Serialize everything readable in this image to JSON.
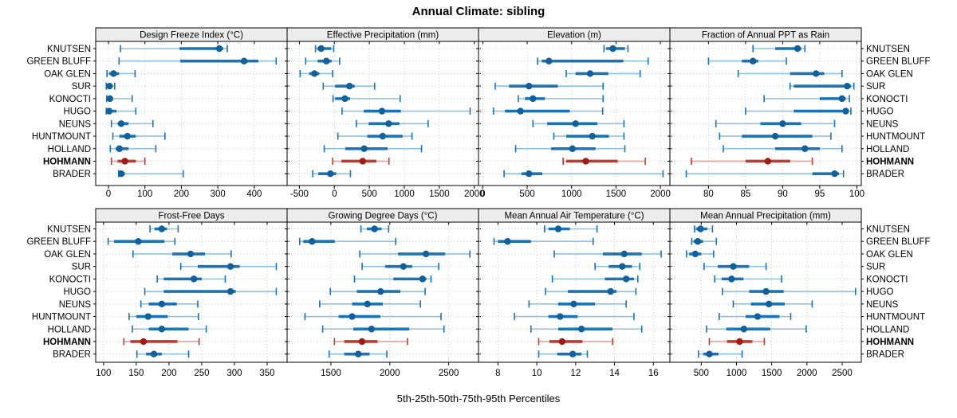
{
  "title": "Annual Climate: sibling",
  "footer": "5th-25th-50th-75th-95th Percentiles",
  "sites": [
    "KNUTSEN",
    "GREEN BLUFF",
    "OAK GLEN",
    "SUR",
    "KONOCTI",
    "HUGO",
    "NEUNS",
    "HUNTMOUNT",
    "HOLLAND",
    "HOHMANN",
    "BRADER"
  ],
  "highlight_site": "HOHMANN",
  "colors": {
    "blue_whisker": "#8fc1e3",
    "blue_band": "#1b72b4",
    "blue_dot": "#10609c",
    "red_whisker": "#dda49e",
    "red_band": "#bf3a2f",
    "red_dot": "#a31c14",
    "grid": "#c9c9c9",
    "strip_bg": "#ececec",
    "border": "#000000"
  },
  "chart_data": {
    "type": "dotplot-percentiles",
    "percentile_labels": [
      "5th",
      "25th",
      "50th",
      "75th",
      "95th"
    ],
    "note": "each series row = [p5,p25,p50,p75,p95] per site, sites order as in sites[]",
    "panels": [
      {
        "title": "Design Freeze Index (°C)",
        "row": 0,
        "col": 0,
        "xlim": [
          -35,
          490
        ],
        "ticks": [
          0,
          100,
          200,
          300,
          400
        ],
        "series": [
          [
            33,
            195,
            304,
            315,
            326
          ],
          [
            29,
            197,
            372,
            411,
            460
          ],
          [
            -4,
            2,
            14,
            29,
            73
          ],
          [
            -6,
            -2,
            3,
            8,
            17
          ],
          [
            -5,
            0,
            4,
            12,
            65
          ],
          [
            -6,
            -2,
            2,
            22,
            75
          ],
          [
            8,
            25,
            35,
            55,
            122
          ],
          [
            12,
            30,
            52,
            75,
            155
          ],
          [
            5,
            20,
            30,
            55,
            130
          ],
          [
            8,
            25,
            45,
            75,
            100
          ],
          [
            28,
            30,
            35,
            45,
            205
          ]
        ]
      },
      {
        "title": "Effective Precipitation (mm)",
        "row": 0,
        "col": 1,
        "xlim": [
          -676,
          2060
        ],
        "ticks": [
          -500,
          0,
          500,
          1000,
          1500,
          2000
        ],
        "series": [
          [
            -270,
            -245,
            -190,
            -45,
            -10
          ],
          [
            -410,
            -240,
            -115,
            -40,
            75
          ],
          [
            -490,
            -360,
            -285,
            -215,
            -25
          ],
          [
            -160,
            10,
            215,
            290,
            575
          ],
          [
            -20,
            10,
            150,
            225,
            940
          ],
          [
            110,
            420,
            680,
            950,
            1940
          ],
          [
            315,
            490,
            775,
            930,
            1340
          ],
          [
            50,
            470,
            690,
            975,
            1110
          ],
          [
            -145,
            155,
            425,
            760,
            1245
          ],
          [
            -25,
            100,
            405,
            600,
            780
          ],
          [
            -310,
            -230,
            -57,
            25,
            230
          ]
        ]
      },
      {
        "title": "Elevation (m)",
        "row": 0,
        "col": 2,
        "xlim": [
          -48,
          2107
        ],
        "ticks": [
          0,
          500,
          1000,
          1500,
          2000
        ],
        "series": [
          [
            1365,
            1390,
            1465,
            1600,
            1635
          ],
          [
            617,
            664,
            745,
            1583,
            1862
          ],
          [
            940,
            1045,
            1209,
            1413,
            1772
          ],
          [
            140,
            295,
            520,
            845,
            1355
          ],
          [
            400,
            475,
            565,
            700,
            1355
          ],
          [
            120,
            250,
            425,
            980,
            1350
          ],
          [
            565,
            725,
            1045,
            1290,
            1590
          ],
          [
            800,
            940,
            1233,
            1420,
            1590
          ],
          [
            370,
            770,
            1010,
            1270,
            1600
          ],
          [
            905,
            940,
            1160,
            1520,
            1830
          ],
          [
            240,
            435,
            520,
            670,
            2030
          ]
        ]
      },
      {
        "title": "Fraction of Annual PPT as Rain",
        "row": 0,
        "col": 3,
        "xlim": [
          74.8,
          100.6
        ],
        "ticks": [
          80,
          85,
          90,
          95,
          100
        ],
        "series": [
          [
            86,
            89,
            92,
            92.5,
            93
          ],
          [
            80,
            84.5,
            86,
            86.7,
            90.5
          ],
          [
            84,
            91,
            94.5,
            95.6,
            98
          ],
          [
            91,
            91.5,
            98.7,
            99.2,
            99.6
          ],
          [
            87.5,
            95,
            98,
            98.5,
            99
          ],
          [
            85,
            91.5,
            98.5,
            98.8,
            99.2
          ],
          [
            81,
            87,
            90,
            92.5,
            97
          ],
          [
            81.5,
            84.5,
            89,
            94,
            96.5
          ],
          [
            82,
            89,
            93,
            95,
            98
          ],
          [
            77.7,
            85,
            88,
            91,
            94
          ],
          [
            77,
            94,
            97,
            97.6,
            98.2
          ]
        ]
      },
      {
        "title": "Frost-Free Days",
        "row": 1,
        "col": 0,
        "xlim": [
          88,
          380.5
        ],
        "ticks": [
          100,
          150,
          200,
          250,
          300,
          350
        ],
        "series": [
          [
            171,
            178,
            189,
            197,
            214
          ],
          [
            107,
            116,
            153,
            193,
            209
          ],
          [
            145,
            205,
            233,
            255,
            295
          ],
          [
            218,
            244,
            294,
            308,
            364
          ],
          [
            182,
            192,
            238,
            250,
            286
          ],
          [
            163,
            192,
            294,
            302,
            364
          ],
          [
            157,
            169,
            189,
            212,
            244
          ],
          [
            139,
            150,
            168,
            198,
            245
          ],
          [
            144,
            169,
            189,
            230,
            257
          ],
          [
            131,
            141,
            161,
            213,
            246
          ],
          [
            151,
            165,
            177,
            189,
            230
          ]
        ]
      },
      {
        "title": "Growing Degree Days (°C)",
        "row": 1,
        "col": 1,
        "xlim": [
          1128,
          2753
        ],
        "ticks": [
          1500,
          2000,
          2500
        ],
        "series": [
          [
            1755,
            1805,
            1870,
            1930,
            1990
          ],
          [
            1235,
            1265,
            1340,
            1533,
            2050
          ],
          [
            1745,
            2070,
            2307,
            2470,
            2680
          ],
          [
            1765,
            1960,
            2115,
            2190,
            2415
          ],
          [
            1700,
            2030,
            2278,
            2310,
            2350
          ],
          [
            1495,
            1720,
            1922,
            2090,
            2300
          ],
          [
            1405,
            1680,
            1810,
            1940,
            2260
          ],
          [
            1280,
            1565,
            1680,
            1920,
            2435
          ],
          [
            1430,
            1690,
            1845,
            2165,
            2460
          ],
          [
            1530,
            1613,
            1764,
            1895,
            2150
          ],
          [
            1485,
            1613,
            1732,
            1828,
            1975
          ]
        ]
      },
      {
        "title": "Mean Annual Air Temperature (°C)",
        "row": 1,
        "col": 2,
        "xlim": [
          7.0,
          16.85
        ],
        "ticks": [
          8,
          10,
          12,
          14,
          16
        ],
        "series": [
          [
            10.4,
            10.6,
            11.1,
            11.7,
            13.1
          ],
          [
            7.8,
            8.0,
            8.5,
            9.7,
            12.9
          ],
          [
            10.9,
            13.4,
            14.5,
            15.4,
            16.4
          ],
          [
            13.0,
            13.7,
            14.4,
            14.9,
            15.3
          ],
          [
            10.8,
            13.5,
            14.6,
            15.0,
            15.2
          ],
          [
            10.45,
            11.6,
            13.8,
            14.1,
            15.1
          ],
          [
            9.6,
            11.1,
            11.9,
            13.0,
            14.6
          ],
          [
            8.85,
            10.6,
            11.2,
            12.1,
            15.0
          ],
          [
            9.7,
            11.1,
            12.3,
            13.9,
            15.4
          ],
          [
            10.1,
            10.65,
            11.3,
            12.35,
            13.9
          ],
          [
            10.1,
            11.05,
            11.85,
            12.3,
            12.6
          ]
        ]
      },
      {
        "title": "Mean Annual Precipitation (mm)",
        "row": 1,
        "col": 3,
        "xlim": [
          55,
          2772
        ],
        "ticks": [
          500,
          1000,
          1500,
          2000,
          2500
        ],
        "series": [
          [
            405,
            425,
            490,
            585,
            660
          ],
          [
            365,
            390,
            450,
            525,
            715
          ],
          [
            290,
            330,
            415,
            500,
            675
          ],
          [
            540,
            735,
            955,
            1180,
            1420
          ],
          [
            690,
            790,
            930,
            1100,
            1640
          ],
          [
            800,
            1180,
            1420,
            1670,
            2690
          ],
          [
            955,
            1205,
            1460,
            1685,
            2075
          ],
          [
            755,
            1130,
            1300,
            1610,
            1770
          ],
          [
            575,
            855,
            1105,
            1480,
            1990
          ],
          [
            615,
            865,
            1045,
            1225,
            1395
          ],
          [
            460,
            530,
            615,
            745,
            1080
          ]
        ]
      }
    ]
  }
}
